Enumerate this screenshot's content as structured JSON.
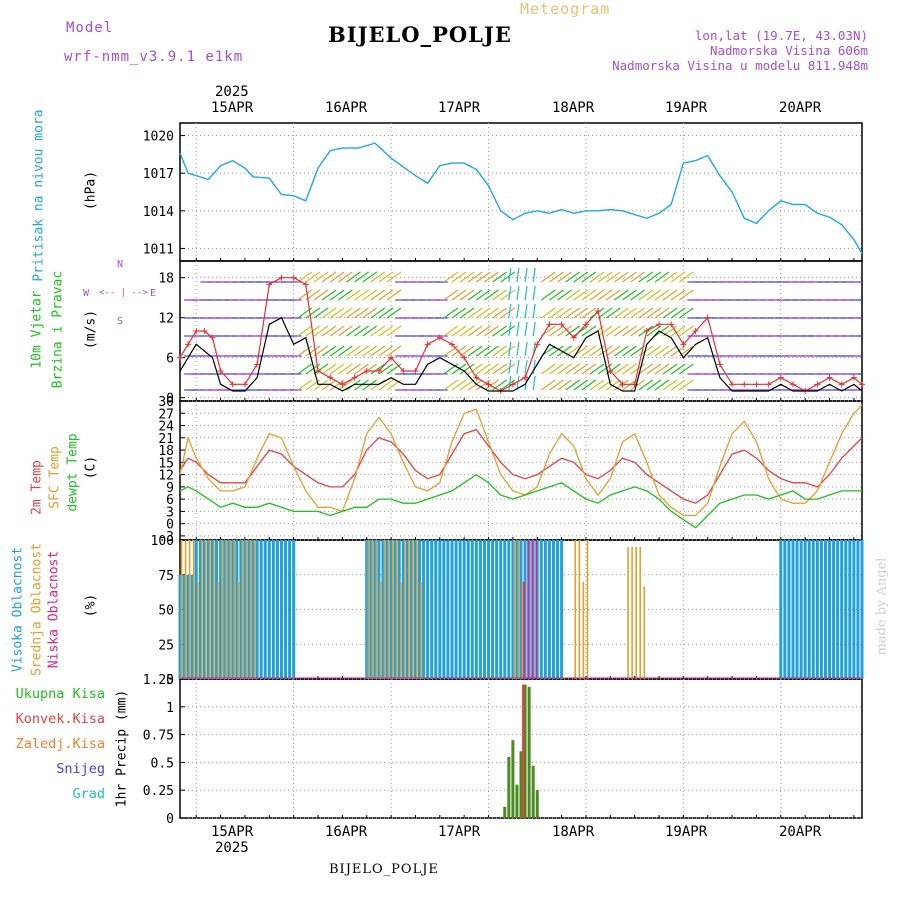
{
  "header": {
    "model_label": "Model",
    "model_name": "wrf-nmm_v3.9.1 e1km",
    "title": "BIJELO_POLJE",
    "subtitle": "Meteogram",
    "lonlat": "lon,lat (19.7E, 43.03N)",
    "elevation": "Nadmorska Visina 606m",
    "model_elevation": "Nadmorska Visina u modelu 811.948m",
    "footer_station": "BIJELO_POLJE",
    "watermark": "made by Angel"
  },
  "dates": {
    "year": "2025",
    "labels": [
      "15APR",
      "16APR",
      "17APR",
      "18APR",
      "19APR",
      "20APR"
    ]
  },
  "colors": {
    "pressure": "#1ea8e0",
    "wind_label": "#20c020",
    "wind_speed": "#000000",
    "gust": "#e83030",
    "temp2m": "#e84040",
    "sfc": "#e0a030",
    "dewpt": "#20c020",
    "cloud_high": "#20a0e0",
    "cloud_mid": "#e0a030",
    "cloud_low": "#e02080",
    "precip_total": "#20c020",
    "precip_conv": "#e84040",
    "precip_frozen": "#f08030",
    "precip_snow": "#4040e0",
    "precip_hail": "#20c0c0",
    "compass": "#a050d0"
  },
  "panel_labels": {
    "pressure": {
      "name": "Pritisak na nivou mora",
      "unit": "(hPa)"
    },
    "wind": {
      "name1": "10m Vjetar",
      "name2": "Brzina i Pravac",
      "unit": "(m/s)"
    },
    "temp": {
      "t2m": "2m Temp",
      "sfc": "SFC Temp",
      "dew": "dewpt Temp",
      "unit": "(C)"
    },
    "cloud": {
      "high": "Visoka Oblacnost",
      "mid": "Srednja Oblacnost",
      "low": "Niska Oblacnost",
      "unit": "(%)"
    },
    "precip": {
      "total": "Ukupna Kisa",
      "conv": "Konvek.Kisa",
      "frozen": "Zaledj.Kisa",
      "snow": "Snijeg",
      "hail": "Grad",
      "unit": "1hr Precip (mm)"
    },
    "compass": {
      "n": "N",
      "s": "S",
      "w": "W",
      "e": "E",
      "arrows": "<-- | -->"
    }
  },
  "chart_data": [
    {
      "type": "line",
      "id": "pressure",
      "x_unit": "hours since 15APR 00UTC",
      "ylim": [
        1010,
        1021
      ],
      "yticks": [
        "1020",
        "1017",
        "1014",
        "1011"
      ],
      "series": [
        {
          "name": "Pritisak na nivou mora",
          "x": [
            -4,
            -2,
            0,
            3,
            6,
            9,
            12,
            14,
            18,
            21,
            24,
            27,
            30,
            33,
            36,
            40,
            44,
            48,
            51,
            54,
            57,
            60,
            63,
            66,
            69,
            72,
            75,
            78,
            81,
            84,
            87,
            90,
            93,
            96,
            99,
            102,
            105,
            108,
            111,
            114,
            117,
            120,
            123,
            126,
            129,
            132,
            135,
            138,
            141,
            144,
            147,
            150,
            153,
            156,
            159,
            162,
            164
          ],
          "values": [
            1018.6,
            1017.0,
            1016.8,
            1016.5,
            1017.6,
            1018.0,
            1017.4,
            1016.7,
            1016.6,
            1015.3,
            1015.2,
            1014.8,
            1017.4,
            1018.8,
            1019.0,
            1019.0,
            1019.4,
            1018.2,
            1017.5,
            1016.8,
            1016.2,
            1017.6,
            1017.8,
            1017.8,
            1017.3,
            1016.0,
            1014.0,
            1013.3,
            1013.8,
            1014.0,
            1013.8,
            1014.1,
            1013.8,
            1014.0,
            1014.0,
            1014.1,
            1014.0,
            1013.7,
            1013.4,
            1013.8,
            1014.5,
            1017.8,
            1018.0,
            1018.4,
            1016.8,
            1015.5,
            1013.4,
            1013.0,
            1014.0,
            1014.8,
            1014.5,
            1014.5,
            1013.8,
            1013.5,
            1012.9,
            1011.7,
            1010.6
          ]
        }
      ]
    },
    {
      "type": "line",
      "id": "wind",
      "x_unit": "hours since 15APR 00UTC",
      "ylim": [
        -0.5,
        20.5
      ],
      "yticks": [
        "18",
        "12",
        "6",
        "0"
      ],
      "series": [
        {
          "name": "wind speed",
          "x": [
            -4,
            -2,
            0,
            2,
            4,
            6,
            9,
            12,
            15,
            18,
            21,
            24,
            27,
            30,
            33,
            36,
            39,
            42,
            45,
            48,
            51,
            54,
            57,
            60,
            63,
            66,
            69,
            72,
            75,
            78,
            81,
            84,
            87,
            90,
            93,
            96,
            99,
            102,
            105,
            108,
            111,
            114,
            117,
            120,
            123,
            126,
            129,
            132,
            135,
            138,
            141,
            144,
            147,
            150,
            153,
            156,
            159,
            162,
            164
          ],
          "values": [
            4,
            6,
            8,
            7,
            6,
            2,
            1,
            1,
            3,
            11,
            12,
            8,
            9,
            2,
            2,
            1,
            2,
            2,
            2,
            3,
            2,
            2,
            5,
            6,
            5,
            4,
            2,
            1,
            1,
            1,
            2,
            5,
            8,
            7,
            6,
            9,
            10,
            2,
            1,
            1,
            8,
            10,
            9,
            6,
            8,
            9,
            3,
            1,
            1,
            1,
            1,
            2,
            1,
            1,
            1,
            2,
            1,
            2,
            1
          ]
        },
        {
          "name": "gust",
          "x": [
            -4,
            -2,
            0,
            2,
            4,
            6,
            9,
            12,
            15,
            18,
            21,
            24,
            27,
            30,
            33,
            36,
            39,
            42,
            45,
            48,
            51,
            54,
            57,
            60,
            63,
            66,
            69,
            72,
            75,
            78,
            81,
            84,
            87,
            90,
            93,
            96,
            99,
            102,
            105,
            108,
            111,
            114,
            117,
            120,
            123,
            126,
            129,
            132,
            135,
            138,
            141,
            144,
            147,
            150,
            153,
            156,
            159,
            162,
            164
          ],
          "values": [
            6,
            8,
            10,
            10,
            9,
            4,
            2,
            2,
            5,
            17,
            18,
            18,
            17,
            4,
            3,
            2,
            3,
            4,
            4,
            6,
            4,
            4,
            8,
            9,
            8,
            6,
            3,
            2,
            1,
            2,
            3,
            8,
            11,
            11,
            9,
            11,
            13,
            4,
            2,
            2,
            10,
            11,
            11,
            8,
            10,
            12,
            5,
            2,
            2,
            2,
            2,
            3,
            2,
            1,
            2,
            3,
            2,
            3,
            2
          ]
        }
      ]
    },
    {
      "type": "line",
      "id": "temperature",
      "x_unit": "hours since 15APR 00UTC",
      "ylim": [
        -4,
        30
      ],
      "yticks": [
        "30",
        "27",
        "24",
        "21",
        "18",
        "15",
        "12",
        "9",
        "6",
        "3",
        "0",
        "-3"
      ],
      "series": [
        {
          "name": "2m Temp",
          "x": [
            -4,
            -2,
            0,
            3,
            6,
            9,
            12,
            15,
            18,
            21,
            24,
            27,
            30,
            33,
            36,
            39,
            42,
            45,
            48,
            51,
            54,
            57,
            60,
            63,
            66,
            69,
            72,
            75,
            78,
            81,
            84,
            87,
            90,
            93,
            96,
            99,
            102,
            105,
            108,
            111,
            114,
            117,
            120,
            123,
            126,
            129,
            132,
            135,
            138,
            141,
            144,
            147,
            150,
            153,
            156,
            159,
            162,
            164
          ],
          "values": [
            13,
            16,
            15,
            12,
            10,
            10,
            10,
            14,
            18,
            17,
            14,
            12,
            10,
            9,
            9,
            12,
            18,
            21,
            20,
            17,
            13,
            11,
            12,
            17,
            22,
            23,
            19,
            15,
            12,
            11,
            12,
            14,
            16,
            15,
            12,
            11,
            13,
            16,
            15,
            12,
            10,
            8,
            6,
            5,
            7,
            12,
            17,
            18,
            16,
            13,
            11,
            10,
            10,
            9,
            12,
            16,
            19,
            21
          ]
        },
        {
          "name": "SFC Temp",
          "x": [
            -4,
            -2,
            0,
            3,
            6,
            9,
            12,
            15,
            18,
            21,
            24,
            27,
            30,
            33,
            36,
            39,
            42,
            45,
            48,
            51,
            54,
            57,
            60,
            63,
            66,
            69,
            72,
            75,
            78,
            81,
            84,
            87,
            90,
            93,
            96,
            99,
            102,
            105,
            108,
            111,
            114,
            117,
            120,
            123,
            126,
            129,
            132,
            135,
            138,
            141,
            144,
            147,
            150,
            153,
            156,
            159,
            162,
            164
          ],
          "values": [
            12,
            21,
            16,
            11,
            8,
            8,
            9,
            16,
            22,
            21,
            14,
            8,
            4,
            4,
            3,
            11,
            22,
            26,
            22,
            15,
            9,
            8,
            10,
            20,
            27,
            28,
            20,
            12,
            8,
            7,
            9,
            17,
            22,
            19,
            11,
            7,
            11,
            20,
            22,
            15,
            7,
            4,
            2,
            2,
            5,
            14,
            22,
            25,
            20,
            11,
            6,
            5,
            5,
            8,
            15,
            22,
            27,
            29
          ]
        },
        {
          "name": "dewpt Temp",
          "x": [
            -4,
            -2,
            0,
            3,
            6,
            9,
            12,
            15,
            18,
            21,
            24,
            27,
            30,
            33,
            36,
            39,
            42,
            45,
            48,
            51,
            54,
            57,
            60,
            63,
            66,
            69,
            72,
            75,
            78,
            81,
            84,
            87,
            90,
            93,
            96,
            99,
            102,
            105,
            108,
            111,
            114,
            117,
            120,
            123,
            126,
            129,
            132,
            135,
            138,
            141,
            144,
            147,
            150,
            153,
            156,
            159,
            162,
            164
          ],
          "values": [
            8,
            9,
            8,
            6,
            4,
            5,
            4,
            4,
            5,
            4,
            3,
            3,
            3,
            2,
            3,
            4,
            4,
            6,
            6,
            5,
            5,
            6,
            7,
            8,
            10,
            12,
            10,
            7,
            6,
            7,
            8,
            9,
            10,
            8,
            6,
            5,
            7,
            8,
            9,
            8,
            6,
            3,
            1,
            -1,
            2,
            5,
            6,
            7,
            7,
            6,
            7,
            8,
            6,
            6,
            7,
            8,
            8,
            8
          ]
        }
      ]
    },
    {
      "type": "bar",
      "id": "cloud",
      "x_unit": "hours since 15APR 00UTC",
      "ylim": [
        0,
        100
      ],
      "yticks": [
        "100",
        "75",
        "50",
        "25",
        "0"
      ],
      "series": [
        {
          "name": "Visoka Oblacnost",
          "ranges": [
            [
              -4,
              -1,
              75
            ],
            [
              0,
              14,
              100
            ],
            [
              15,
              24,
              100
            ],
            [
              42,
              66,
              100
            ],
            [
              67,
              90,
              100
            ],
            [
              144,
              164,
              100
            ]
          ]
        },
        {
          "name": "Srednja Oblacnost",
          "ranges": [
            [
              -4,
              14,
              100
            ],
            [
              42,
              55,
              100
            ],
            [
              78,
              80,
              100
            ],
            [
              93,
              96,
              100
            ],
            [
              106,
              110,
              95
            ]
          ]
        },
        {
          "name": "Niska Oblacnost",
          "ranges": [
            [
              80,
              83,
              100
            ]
          ]
        }
      ]
    },
    {
      "type": "bar",
      "id": "precip",
      "x_unit": "hours since 15APR 00UTC",
      "ylim": [
        0,
        1.25
      ],
      "yticks": [
        "1.25",
        "1",
        "0.75",
        "0.5",
        "0.25",
        "0"
      ],
      "series": [
        {
          "name": "Ukupna Kisa",
          "x": [
            76,
            77,
            78,
            79,
            80,
            81,
            82,
            83,
            84
          ],
          "values": [
            0.1,
            0.55,
            0.7,
            0.3,
            0.6,
            1.2,
            1.18,
            0.47,
            0.25
          ]
        },
        {
          "name": "Konvek.Kisa",
          "x": [
            81
          ],
          "values": [
            1.2
          ]
        }
      ]
    }
  ]
}
